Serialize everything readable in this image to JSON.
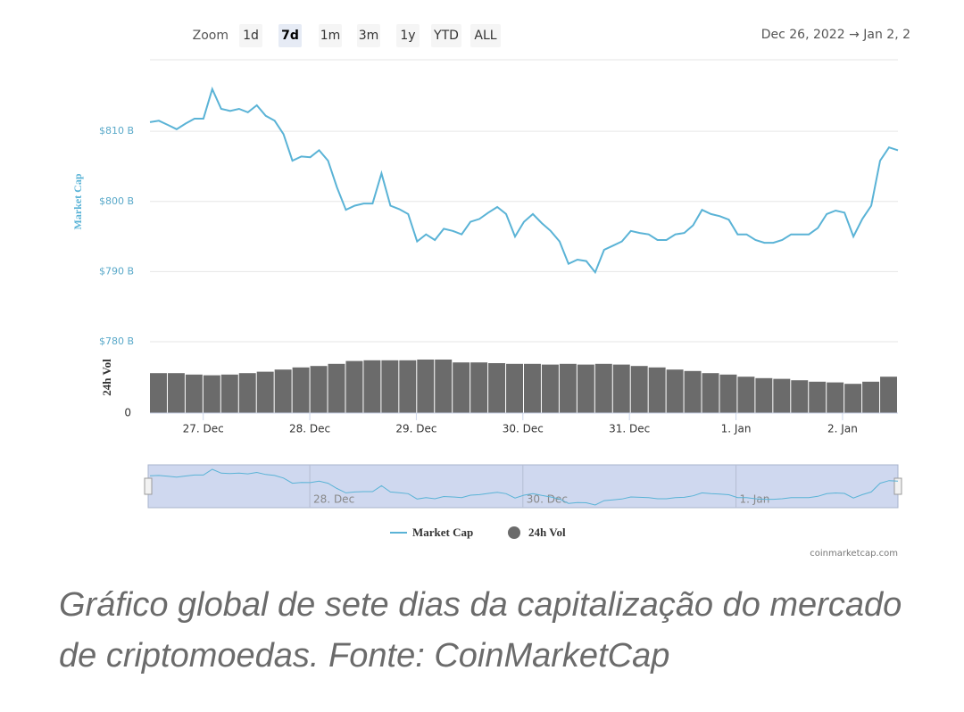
{
  "zoom": {
    "label": "Zoom",
    "buttons": [
      "1d",
      "7d",
      "1m",
      "3m",
      "1y",
      "YTD",
      "ALL"
    ],
    "selected": 1
  },
  "date_range": "Dec 26, 2022 → Jan 2, 2",
  "credit": "coinmarketcap.com",
  "caption": "Gráfico global de sete dias da capitalização do mercado de criptomoedas. Fonte: CoinMarketCap",
  "chart_data": {
    "type": "line",
    "ylabel": "Market Cap",
    "y2label": "24h Vol",
    "xlim": [
      0.5,
      7.52
    ],
    "xticks": [
      {
        "value": 1,
        "label": "27. Dec"
      },
      {
        "value": 2,
        "label": "28. Dec"
      },
      {
        "value": 3,
        "label": "29. Dec"
      },
      {
        "value": 4,
        "label": "30. Dec"
      },
      {
        "value": 5,
        "label": "31. Dec"
      },
      {
        "value": 6,
        "label": "1. Jan"
      },
      {
        "value": 7,
        "label": "2. Jan"
      }
    ],
    "ylim": [
      780,
      820
    ],
    "yticks": [
      {
        "value": 780,
        "label": "$780 B"
      },
      {
        "value": 790,
        "label": "$790 B"
      },
      {
        "value": 800,
        "label": "$800 B"
      },
      {
        "value": 810,
        "label": "$810 B"
      }
    ],
    "y2lim": [
      0,
      100
    ],
    "y2ticks": [
      0
    ],
    "grid": true,
    "series": [
      {
        "name": "Market Cap",
        "color": "#5ab3d6",
        "values": [
          811.3,
          811.5,
          810.9,
          810.3,
          811.1,
          811.8,
          811.8,
          816.0,
          813.2,
          812.9,
          813.2,
          812.7,
          813.7,
          812.2,
          811.5,
          809.6,
          805.8,
          806.4,
          806.3,
          807.3,
          805.8,
          802.0,
          798.8,
          799.4,
          799.7,
          799.7,
          804.0,
          799.4,
          798.9,
          798.2,
          794.3,
          795.3,
          794.5,
          796.1,
          795.8,
          795.3,
          797.1,
          797.5,
          798.4,
          799.2,
          798.2,
          795.0,
          797.1,
          798.2,
          796.9,
          795.8,
          794.3,
          791.1,
          791.7,
          791.5,
          789.9,
          793.1,
          793.7,
          794.3,
          795.8,
          795.5,
          795.3,
          794.5,
          794.5,
          795.3,
          795.5,
          796.6,
          798.8,
          798.2,
          797.9,
          797.4,
          795.3,
          795.3,
          794.5,
          794.1,
          794.1,
          794.5,
          795.3,
          795.3,
          795.3,
          796.2,
          798.2,
          798.7,
          798.4,
          795.0,
          797.5,
          799.4,
          805.8,
          807.7,
          807.3
        ]
      },
      {
        "name": "24h Vol",
        "color": "#6b6b6b",
        "axis": "y2",
        "values": [
          56,
          56,
          54,
          53,
          54,
          56,
          58,
          61,
          64,
          66,
          69,
          73,
          74,
          74,
          74,
          75,
          75,
          71,
          71,
          70,
          69,
          69,
          68,
          69,
          68,
          69,
          68,
          66,
          64,
          61,
          59,
          56,
          54,
          51,
          49,
          48,
          46,
          44,
          43,
          41,
          44,
          51
        ]
      }
    ]
  }
}
